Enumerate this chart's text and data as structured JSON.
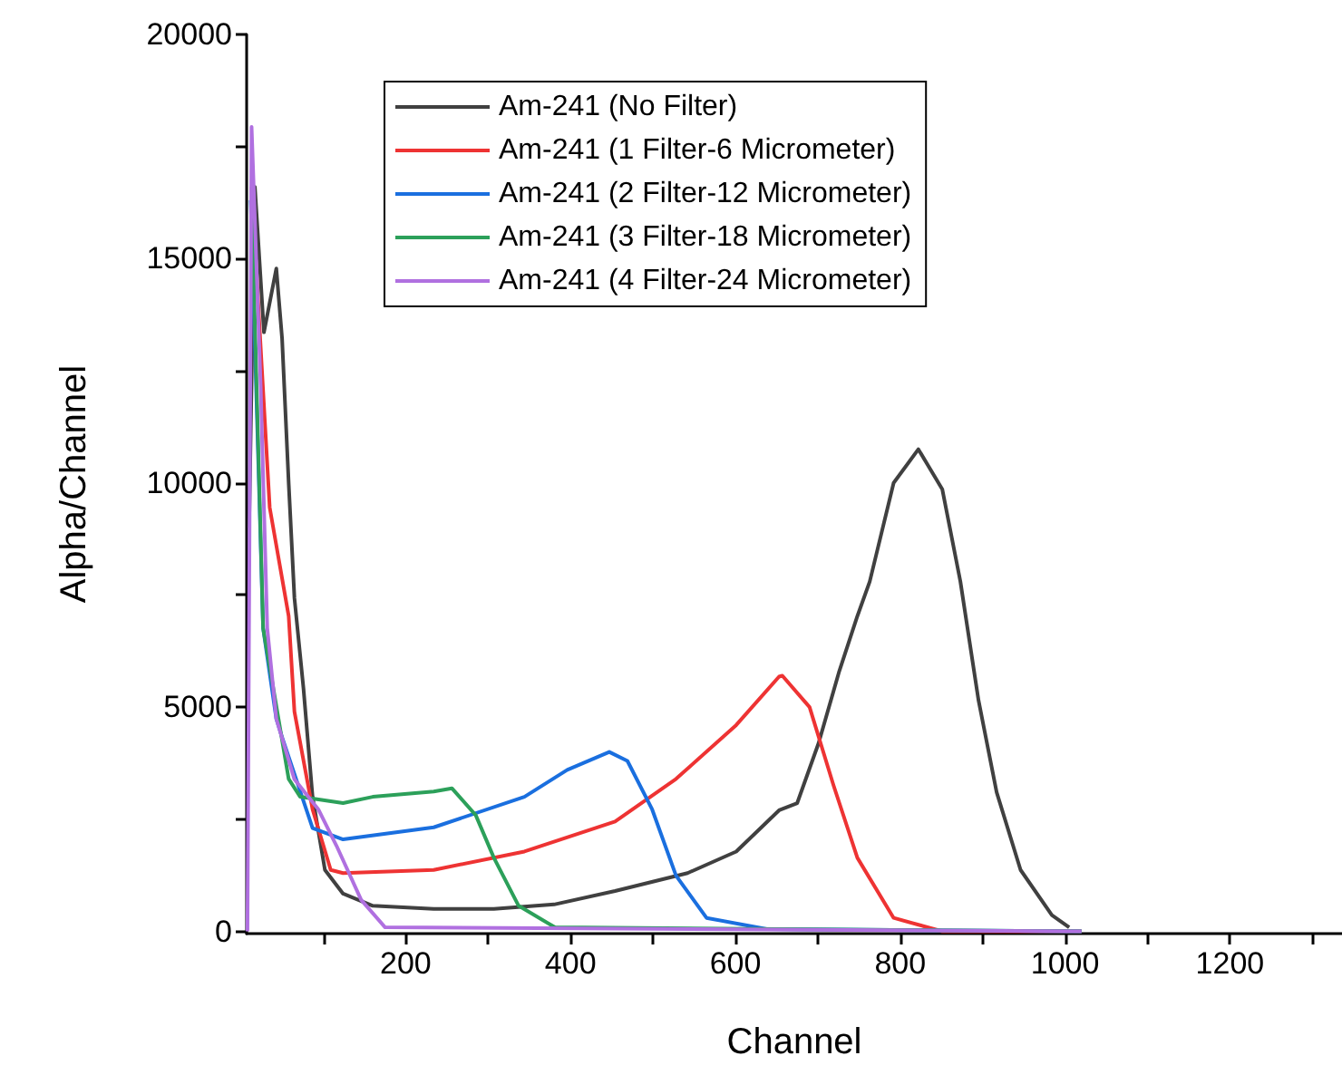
{
  "chart_data": {
    "type": "line",
    "xlabel": "Channel",
    "ylabel": "Alpha/Channel",
    "xlim": [
      7,
      1336
    ],
    "ylim": [
      -50,
      20000
    ],
    "xticks": [
      {
        "value": 100,
        "label": null
      },
      200,
      {
        "value": 300,
        "label": null
      },
      400,
      {
        "value": 500,
        "label": null
      },
      600,
      {
        "value": 700,
        "label": null
      },
      800,
      {
        "value": 900,
        "label": null
      },
      1000,
      {
        "value": 1100,
        "label": null
      },
      1200,
      {
        "value": 1300,
        "label": null
      }
    ],
    "yticks": [
      0,
      {
        "value": 2500,
        "label": null
      },
      5000,
      {
        "value": 7500,
        "label": null
      },
      10000,
      {
        "value": 12500,
        "label": null
      },
      15000,
      {
        "value": 17500,
        "label": null
      },
      20000
    ],
    "grid": false,
    "legend": "top",
    "marker": "none",
    "line_style": "solid",
    "series": [
      {
        "name": "Am-241 (No Filter)",
        "color": "#404040",
        "x": [
          10,
          17,
          28,
          43,
          50,
          58,
          65,
          76,
          87,
          102,
          124,
          160,
          234,
          307,
          380,
          454,
          542,
          601,
          653,
          675,
          701,
          726,
          748,
          763,
          792,
          822,
          851,
          873,
          895,
          917,
          946,
          984,
          1005
        ],
        "values": [
          9000,
          16600,
          13360,
          14780,
          13220,
          10000,
          7430,
          5410,
          3000,
          1370,
          840,
          570,
          500,
          500,
          600,
          900,
          1300,
          1780,
          2700,
          2860,
          4200,
          5800,
          7030,
          7800,
          10000,
          10750,
          9860,
          7800,
          5150,
          3100,
          1370,
          360,
          90
        ]
      },
      {
        "name": "Am-241 (1 Filter-6 Micrometer)",
        "color": "#ee3333",
        "x": [
          13,
          35,
          58,
          65,
          87,
          109,
          124,
          234,
          344,
          454,
          528,
          601,
          653,
          657,
          690,
          719,
          748,
          792,
          851,
          1020
        ],
        "values": [
          16600,
          9450,
          7030,
          4900,
          2720,
          1370,
          1300,
          1370,
          1780,
          2450,
          3400,
          4600,
          5680,
          5700,
          5000,
          3260,
          1640,
          300,
          0,
          0
        ]
      },
      {
        "name": "Am-241 (2 Filter-12 Micrometer)",
        "color": "#1a6fdf",
        "x": [
          12,
          27,
          43,
          50,
          87,
          124,
          234,
          344,
          396,
          447,
          469,
          499,
          528,
          565,
          638,
          1020
        ],
        "values": [
          16300,
          6760,
          4740,
          4330,
          2300,
          2050,
          2320,
          3000,
          3600,
          4000,
          3800,
          2720,
          1240,
          300,
          50,
          0
        ]
      },
      {
        "name": "Am-241 (3 Filter-18 Micrometer)",
        "color": "#2ca05a",
        "x": [
          13,
          27,
          58,
          72,
          124,
          160,
          234,
          256,
          285,
          307,
          337,
          381,
          1020
        ],
        "values": [
          16300,
          6760,
          3400,
          3000,
          2860,
          3000,
          3120,
          3190,
          2590,
          1640,
          570,
          90,
          0
        ]
      },
      {
        "name": "Am-241 (4 Filter-24 Micrometer)",
        "color": "#b070e0",
        "x": [
          8,
          13,
          24,
          32,
          43,
          65,
          94,
          116,
          146,
          175,
          1020
        ],
        "values": [
          0,
          17940,
          12160,
          6760,
          4740,
          3390,
          2720,
          1910,
          700,
          90,
          0
        ]
      }
    ]
  }
}
